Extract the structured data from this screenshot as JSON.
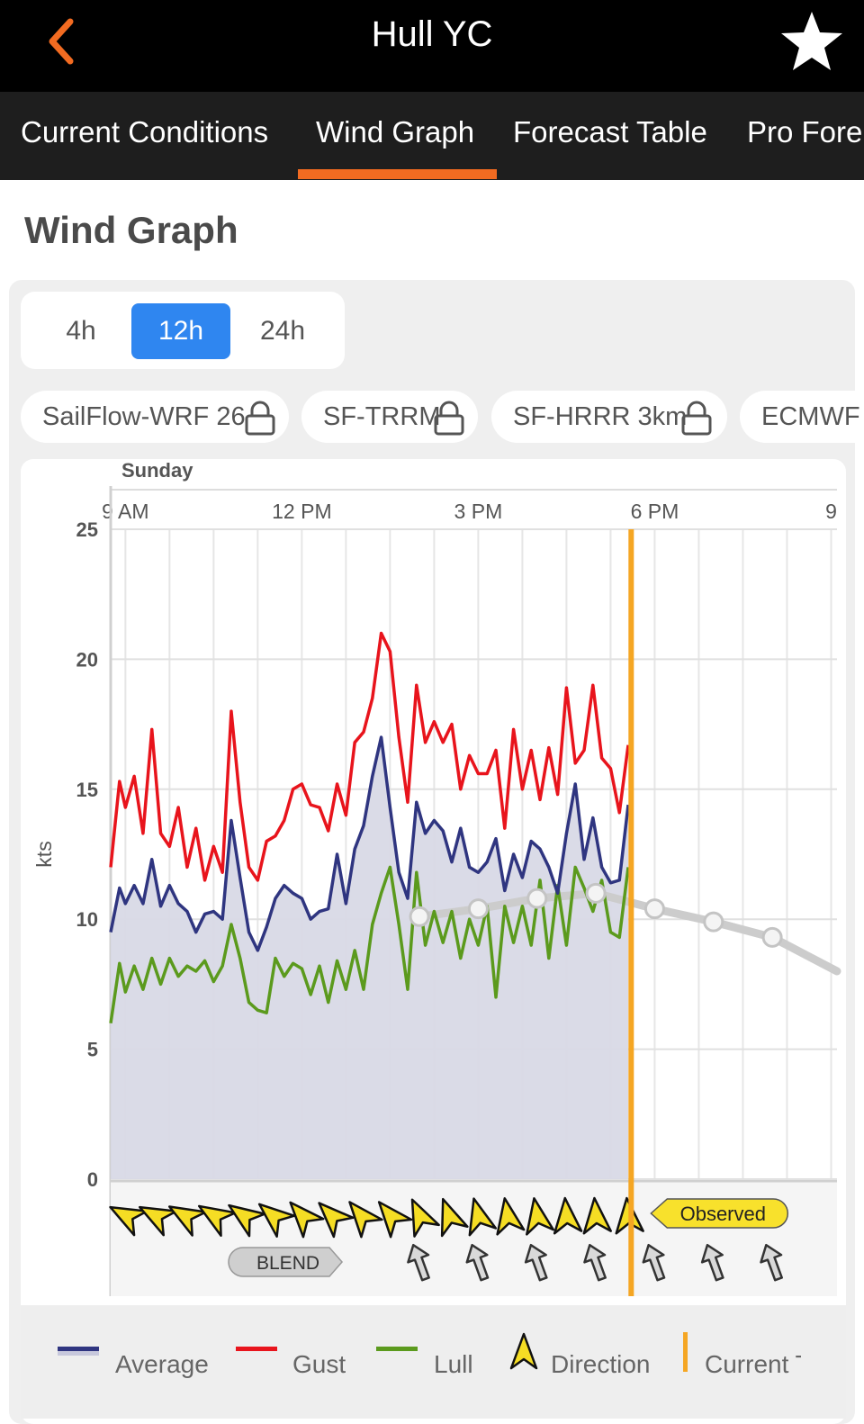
{
  "header": {
    "title": "Hull YC",
    "back_icon": "chevron-left-icon",
    "favorite_icon": "star-icon"
  },
  "tabs": [
    {
      "label": "Current Conditions",
      "active": false
    },
    {
      "label": "Wind Graph",
      "active": true
    },
    {
      "label": "Forecast Table",
      "active": false
    },
    {
      "label": "Pro Fore",
      "active": false
    }
  ],
  "section_title": "Wind Graph",
  "range_options": [
    {
      "label": "4h",
      "active": false
    },
    {
      "label": "12h",
      "active": true
    },
    {
      "label": "24h",
      "active": false
    }
  ],
  "models": [
    {
      "label": "SailFlow-WRF 26",
      "locked": true
    },
    {
      "label": "SF-TRRM",
      "locked": true
    },
    {
      "label": "SF-HRRR 3km",
      "locked": true
    },
    {
      "label": "ECMWF",
      "locked": false
    }
  ],
  "colors": {
    "accent": "#f26b21",
    "average": "#2f3580",
    "gust": "#e8141c",
    "lull": "#5b9a1d",
    "current_time": "#f5a623",
    "fill": "#d8d9e6",
    "blend": "#cccccc",
    "active_range": "#2f86f0"
  },
  "chart_data": {
    "type": "line",
    "day_label": "Sunday",
    "ylabel": "kts",
    "ylim": [
      0,
      25
    ],
    "yticks": [
      "0",
      "5",
      "10",
      "15",
      "20",
      "25"
    ],
    "x_unit": "hour of day",
    "xlim": [
      8.75,
      21.1
    ],
    "xticks": [
      {
        "label": "9 AM",
        "x": 9
      },
      {
        "label": "12 PM",
        "x": 12
      },
      {
        "label": "3 PM",
        "x": 15
      },
      {
        "label": "6 PM",
        "x": 18
      },
      {
        "label": "9",
        "x": 21
      }
    ],
    "current_time": 17.6,
    "series": [
      {
        "name": "Gust",
        "x": [
          8.75,
          8.9,
          9.0,
          9.15,
          9.3,
          9.45,
          9.6,
          9.75,
          9.9,
          10.05,
          10.2,
          10.35,
          10.5,
          10.65,
          10.8,
          10.95,
          11.1,
          11.25,
          11.4,
          11.55,
          11.7,
          11.85,
          12.0,
          12.15,
          12.3,
          12.45,
          12.6,
          12.75,
          12.9,
          13.05,
          13.2,
          13.35,
          13.5,
          13.65,
          13.8,
          13.95,
          14.1,
          14.25,
          14.4,
          14.55,
          14.7,
          14.85,
          15.0,
          15.15,
          15.3,
          15.45,
          15.6,
          15.75,
          15.9,
          16.05,
          16.2,
          16.35,
          16.5,
          16.65,
          16.8,
          16.95,
          17.1,
          17.25,
          17.4,
          17.55
        ],
        "values": [
          12,
          15.3,
          14.3,
          15.5,
          13.3,
          17.3,
          13.3,
          12.8,
          14.3,
          12,
          13.5,
          11.5,
          12.8,
          11.8,
          18,
          14.5,
          12,
          11.5,
          13,
          13.2,
          13.8,
          15,
          15.2,
          14.4,
          14.3,
          13.4,
          15.2,
          14,
          16.8,
          17.2,
          18.5,
          21,
          20.3,
          17,
          14.5,
          19,
          16.8,
          17.6,
          16.8,
          17.5,
          15,
          16.3,
          15.6,
          15.6,
          16.5,
          13.5,
          17.3,
          15,
          16.5,
          14.6,
          16.6,
          14.8,
          18.9,
          16,
          16.5,
          19,
          16.2,
          15.8,
          14.1,
          16.7
        ]
      },
      {
        "name": "Average",
        "x": [
          8.75,
          8.9,
          9.0,
          9.15,
          9.3,
          9.45,
          9.6,
          9.75,
          9.9,
          10.05,
          10.2,
          10.35,
          10.5,
          10.65,
          10.8,
          10.95,
          11.1,
          11.25,
          11.4,
          11.55,
          11.7,
          11.85,
          12.0,
          12.15,
          12.3,
          12.45,
          12.6,
          12.75,
          12.9,
          13.05,
          13.2,
          13.35,
          13.5,
          13.65,
          13.8,
          13.95,
          14.1,
          14.25,
          14.4,
          14.55,
          14.7,
          14.85,
          15.0,
          15.15,
          15.3,
          15.45,
          15.6,
          15.75,
          15.9,
          16.05,
          16.2,
          16.35,
          16.5,
          16.65,
          16.8,
          16.95,
          17.1,
          17.25,
          17.4,
          17.55
        ],
        "values": [
          9.5,
          11.2,
          10.6,
          11.3,
          10.6,
          12.3,
          10.5,
          11.3,
          10.6,
          10.3,
          9.5,
          10.2,
          10.3,
          10,
          13.8,
          11.6,
          9.5,
          8.8,
          9.7,
          10.8,
          11.3,
          11,
          10.8,
          10,
          10.3,
          10.4,
          12.5,
          10.6,
          12.7,
          13.6,
          15.5,
          17,
          14.3,
          11.8,
          10.8,
          14.5,
          13.3,
          13.8,
          13.4,
          12.2,
          13.5,
          12,
          11.8,
          12.2,
          13.1,
          11.1,
          12.5,
          11.6,
          13,
          12.7,
          12,
          11,
          13.3,
          15.2,
          12.3,
          13.9,
          12,
          11.4,
          11.5,
          14.4
        ]
      },
      {
        "name": "Lull",
        "x": [
          8.75,
          8.9,
          9.0,
          9.15,
          9.3,
          9.45,
          9.6,
          9.75,
          9.9,
          10.05,
          10.2,
          10.35,
          10.5,
          10.65,
          10.8,
          10.95,
          11.1,
          11.25,
          11.4,
          11.55,
          11.7,
          11.85,
          12.0,
          12.15,
          12.3,
          12.45,
          12.6,
          12.75,
          12.9,
          13.05,
          13.2,
          13.35,
          13.5,
          13.65,
          13.8,
          13.95,
          14.1,
          14.25,
          14.4,
          14.55,
          14.7,
          14.85,
          15.0,
          15.15,
          15.3,
          15.45,
          15.6,
          15.75,
          15.9,
          16.05,
          16.2,
          16.35,
          16.5,
          16.65,
          16.8,
          16.95,
          17.1,
          17.25,
          17.4,
          17.55
        ],
        "values": [
          6,
          8.3,
          7.2,
          8.2,
          7.3,
          8.5,
          7.5,
          8.5,
          7.8,
          8.2,
          8,
          8.4,
          7.6,
          8.2,
          9.8,
          8.5,
          6.8,
          6.5,
          6.4,
          8.5,
          7.8,
          8.3,
          8.1,
          7.1,
          8.2,
          6.8,
          8.4,
          7.3,
          8.8,
          7.3,
          9.8,
          11,
          12,
          9.8,
          7.3,
          11.8,
          9,
          10.3,
          9.1,
          10.3,
          8.5,
          10,
          9,
          10.5,
          7,
          10.5,
          9.1,
          10.5,
          9,
          11.5,
          8.5,
          11.3,
          9,
          12,
          11.2,
          10.3,
          11.5,
          9.5,
          9.3,
          12
        ]
      },
      {
        "name": "BLEND",
        "x": [
          14.0,
          15.0,
          16.0,
          17.0,
          18.0,
          19.0,
          20.0,
          21.1
        ],
        "values": [
          10.1,
          10.4,
          10.8,
          11.0,
          10.4,
          9.9,
          9.3,
          8.0
        ]
      }
    ],
    "observed_directions": {
      "x": [
        9.0,
        9.5,
        10.0,
        10.5,
        11.0,
        11.5,
        12.0,
        12.5,
        13.0,
        13.5,
        14.0,
        14.5,
        15.0,
        15.5,
        16.0,
        16.5,
        17.0,
        17.55
      ],
      "deg": [
        -62,
        -62,
        -60,
        -58,
        -55,
        -50,
        -42,
        -45,
        -40,
        -40,
        -25,
        -20,
        -15,
        -10,
        -10,
        -5,
        -5,
        -5
      ]
    },
    "forecast_directions": {
      "x": [
        14.0,
        15.0,
        16.0,
        17.0,
        18.0,
        19.0,
        20.0
      ],
      "deg": [
        -20,
        -20,
        -20,
        -20,
        -20,
        -20,
        -20
      ]
    },
    "observed_label": "Observed",
    "blend_label": "BLEND",
    "legend": [
      {
        "label": "Average",
        "icon": "line-average"
      },
      {
        "label": "Gust",
        "icon": "line-gust"
      },
      {
        "label": "Lull",
        "icon": "line-lull"
      },
      {
        "label": "Direction",
        "icon": "direction-arrow-icon"
      },
      {
        "label": "Current T",
        "icon": "current-time-line"
      }
    ]
  }
}
